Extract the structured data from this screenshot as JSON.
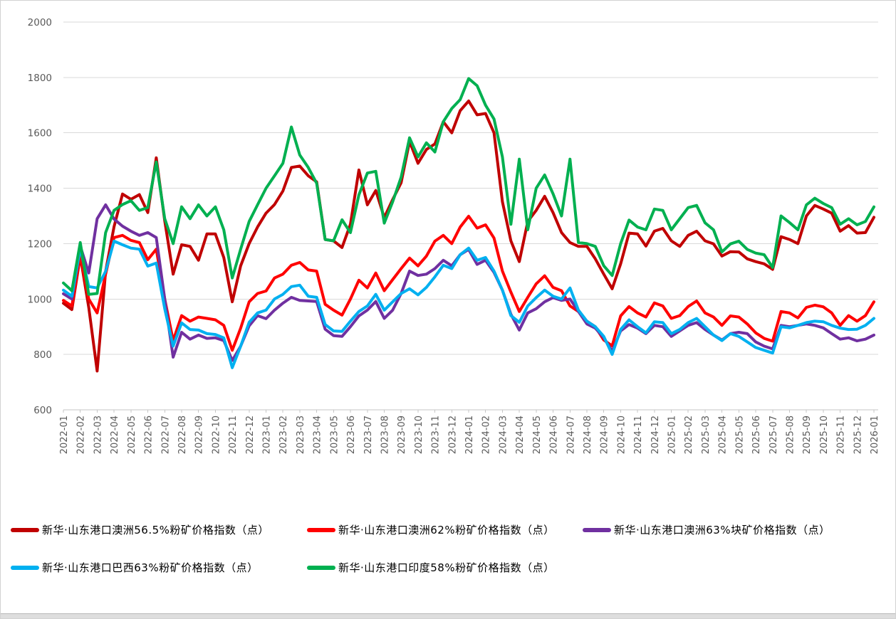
{
  "chart_data": {
    "type": "line",
    "title": "",
    "xlabel": "",
    "ylabel": "",
    "ylim": [
      600,
      2000
    ],
    "y_ticks": [
      600,
      800,
      1000,
      1200,
      1400,
      1600,
      1800,
      2000
    ],
    "grid": "horizontal",
    "legend_position": "bottom",
    "samples_per_month": 2,
    "x_labels": [
      "2022-01",
      "2022-02",
      "2022-03",
      "2022-04",
      "2022-05",
      "2022-06",
      "2022-07",
      "2022-08",
      "2022-09",
      "2022-10",
      "2022-11",
      "2022-12",
      "2023-01",
      "2023-02",
      "2023-03",
      "2023-04",
      "2023-05",
      "2023-06",
      "2023-07",
      "2023-08",
      "2023-09",
      "2023-10",
      "2023-11",
      "2023-12",
      "2024-01",
      "2024-02",
      "2024-03",
      "2024-04",
      "2024-05",
      "2024-06",
      "2024-07",
      "2024-08",
      "2024-09",
      "2024-10",
      "2024-11",
      "2024-12",
      "2025-01",
      "2025-02",
      "2025-03",
      "2025-04",
      "2025-05",
      "2025-06",
      "2025-07",
      "2025-08",
      "2025-09",
      "2025-10",
      "2025-11",
      "2025-12",
      "2026-01"
    ],
    "series": [
      {
        "name": "新华·山东港口澳洲56.5%粉矿价格指数（点）",
        "color": "#C00000",
        "values": [
          985,
          962,
          1155,
          970,
          740,
          1100,
          1261,
          1379,
          1360,
          1377,
          1312,
          1510,
          1282,
          1090,
          1196,
          1190,
          1140,
          1235,
          1235,
          1150,
          990,
          1120,
          1200,
          1260,
          1310,
          1341,
          1390,
          1475,
          1480,
          1445,
          1423,
          1215,
          1210,
          1186,
          1270,
          1466,
          1340,
          1392,
          1294,
          1359,
          1420,
          1569,
          1490,
          1540,
          1560,
          1640,
          1600,
          1680,
          1715,
          1665,
          1670,
          1600,
          1351,
          1210,
          1135,
          1280,
          1320,
          1371,
          1312,
          1240,
          1204,
          1190,
          1190,
          1145,
          1090,
          1037,
          1127,
          1238,
          1235,
          1191,
          1245,
          1255,
          1210,
          1190,
          1230,
          1245,
          1210,
          1199,
          1155,
          1171,
          1170,
          1145,
          1135,
          1127,
          1107,
          1225,
          1215,
          1200,
          1300,
          1338,
          1325,
          1310,
          1245,
          1265,
          1238,
          1240,
          1295
        ]
      },
      {
        "name": "新华·山东港口澳洲62%粉矿价格指数（点）",
        "color": "#FF0000",
        "values": [
          995,
          975,
          1160,
          1000,
          950,
          1090,
          1222,
          1230,
          1212,
          1204,
          1142,
          1180,
          1000,
          850,
          940,
          920,
          935,
          930,
          925,
          905,
          815,
          895,
          990,
          1020,
          1029,
          1076,
          1090,
          1122,
          1132,
          1105,
          1101,
          981,
          960,
          942,
          1000,
          1068,
          1040,
          1094,
          1030,
          1070,
          1110,
          1148,
          1120,
          1155,
          1209,
          1230,
          1200,
          1260,
          1299,
          1256,
          1268,
          1220,
          1101,
          1025,
          955,
          1006,
          1055,
          1084,
          1042,
          1030,
          975,
          955,
          920,
          900,
          852,
          831,
          939,
          973,
          950,
          935,
          986,
          975,
          930,
          940,
          973,
          993,
          950,
          935,
          905,
          939,
          935,
          910,
          878,
          858,
          848,
          955,
          950,
          932,
          970,
          978,
          972,
          950,
          905,
          940,
          920,
          940,
          990
        ]
      },
      {
        "name": "新华·山东港口澳洲63%块矿价格指数（点）",
        "color": "#7030A0",
        "values": [
          1019,
          1000,
          1191,
          1094,
          1290,
          1340,
          1289,
          1263,
          1245,
          1230,
          1240,
          1222,
          1000,
          790,
          880,
          855,
          870,
          858,
          860,
          850,
          778,
          830,
          903,
          940,
          929,
          960,
          985,
          1006,
          995,
          993,
          991,
          891,
          868,
          865,
          900,
          939,
          960,
          991,
          930,
          960,
          1020,
          1101,
          1085,
          1090,
          1110,
          1140,
          1120,
          1160,
          1179,
          1125,
          1140,
          1096,
          1032,
          945,
          888,
          950,
          965,
          990,
          1005,
          995,
          1000,
          955,
          910,
          895,
          860,
          812,
          885,
          908,
          895,
          875,
          905,
          900,
          865,
          885,
          905,
          915,
          890,
          870,
          852,
          875,
          880,
          875,
          845,
          830,
          820,
          905,
          900,
          905,
          910,
          905,
          896,
          875,
          855,
          860,
          849,
          855,
          870
        ]
      },
      {
        "name": "新华·山东港口巴西63%粉矿价格指数（点）",
        "color": "#00B0F0",
        "values": [
          1032,
          1010,
          1184,
          1045,
          1040,
          1100,
          1209,
          1196,
          1184,
          1180,
          1119,
          1130,
          965,
          830,
          914,
          890,
          888,
          875,
          872,
          860,
          752,
          830,
          916,
          950,
          960,
          1000,
          1017,
          1045,
          1050,
          1010,
          1006,
          908,
          885,
          883,
          920,
          955,
          975,
          1017,
          960,
          990,
          1020,
          1037,
          1015,
          1042,
          1080,
          1122,
          1110,
          1160,
          1184,
          1140,
          1150,
          1101,
          1032,
          940,
          916,
          975,
          1005,
          1032,
          1010,
          1000,
          1040,
          960,
          920,
          900,
          865,
          800,
          890,
          925,
          900,
          878,
          918,
          915,
          875,
          890,
          915,
          930,
          900,
          870,
          850,
          875,
          865,
          845,
          825,
          815,
          805,
          900,
          896,
          905,
          915,
          920,
          918,
          905,
          895,
          890,
          891,
          905,
          930
        ]
      },
      {
        "name": "新华·山东港口印度58%粉矿价格指数（点）",
        "color": "#00B050",
        "values": [
          1058,
          1030,
          1204,
          1017,
          1020,
          1240,
          1320,
          1341,
          1355,
          1320,
          1330,
          1495,
          1290,
          1200,
          1333,
          1290,
          1340,
          1300,
          1333,
          1250,
          1076,
          1180,
          1280,
          1340,
          1400,
          1445,
          1490,
          1621,
          1520,
          1475,
          1418,
          1215,
          1210,
          1286,
          1240,
          1376,
          1455,
          1461,
          1274,
          1351,
          1440,
          1582,
          1513,
          1564,
          1531,
          1640,
          1688,
          1720,
          1796,
          1770,
          1700,
          1650,
          1513,
          1270,
          1505,
          1250,
          1400,
          1448,
          1380,
          1300,
          1505,
          1204,
          1200,
          1190,
          1120,
          1085,
          1200,
          1285,
          1260,
          1250,
          1325,
          1320,
          1250,
          1290,
          1330,
          1338,
          1275,
          1250,
          1170,
          1199,
          1209,
          1179,
          1166,
          1160,
          1114,
          1300,
          1276,
          1250,
          1340,
          1364,
          1345,
          1330,
          1270,
          1290,
          1268,
          1280,
          1333
        ]
      }
    ],
    "legend_rows": [
      [
        0,
        1,
        2
      ],
      [
        3,
        4
      ]
    ]
  },
  "style": {
    "axis_text_color": "#595959",
    "gridline_color": "#D9D9D9",
    "axis_line_color": "#C6C6C6",
    "legend_text_color": "#000000",
    "background_color": "#FFFFFF"
  }
}
